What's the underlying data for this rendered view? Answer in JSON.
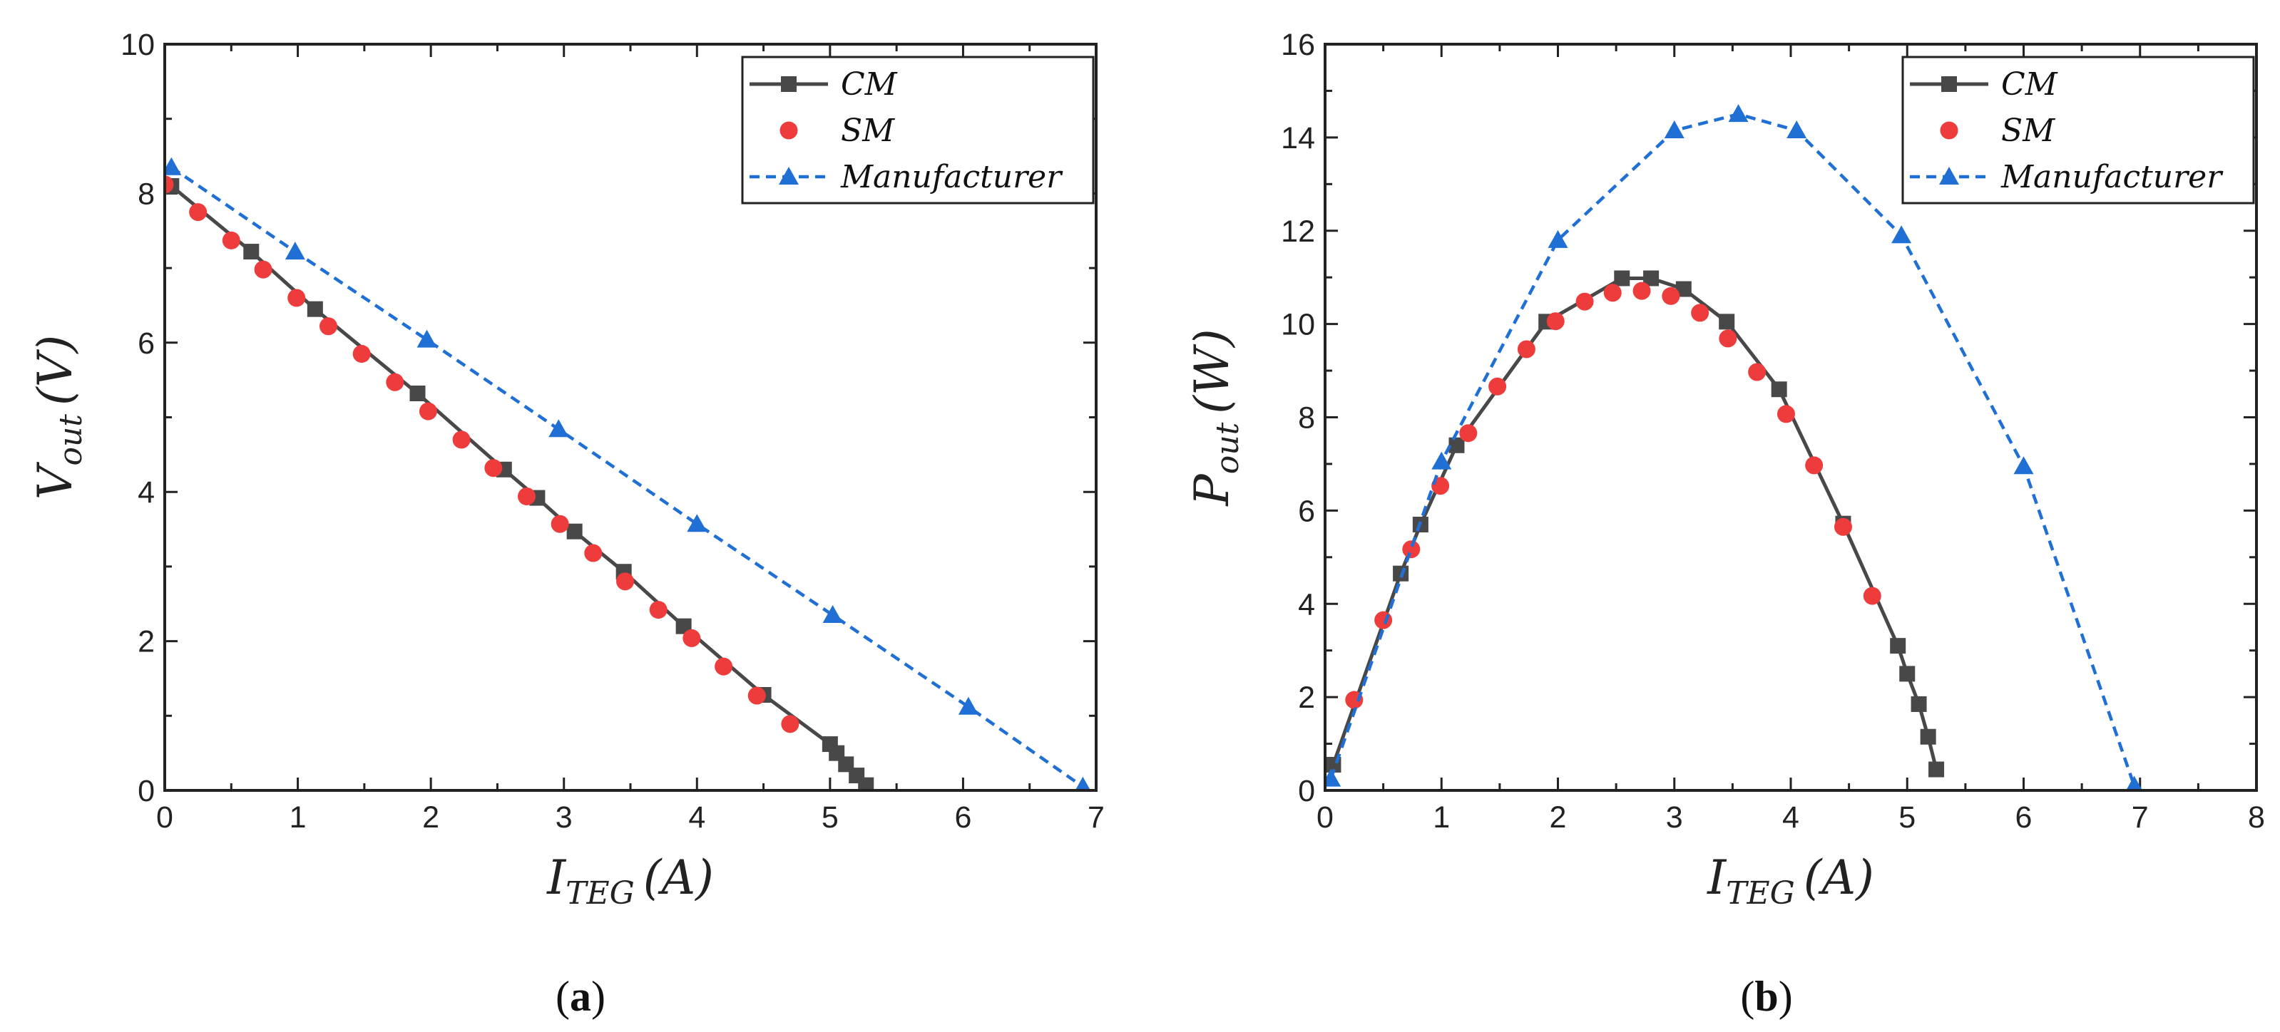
{
  "colors": {
    "cm": "#484848",
    "sm": "#ee3c3c",
    "manufacturer": "#1f6fd4",
    "axis": "#222222"
  },
  "chart_data": [
    {
      "type": "line",
      "panel_label": {
        "open": "(",
        "letter": "a",
        "close": ")"
      },
      "xlabel": {
        "base": "I",
        "sub": "TEG",
        "unit": "(A)"
      },
      "ylabel": {
        "base": "V",
        "sub": "out",
        "unit": "(V)"
      },
      "xlim": [
        0,
        7
      ],
      "ylim": [
        0,
        10
      ],
      "xticks": [
        0,
        1,
        2,
        3,
        4,
        5,
        6,
        7
      ],
      "yticks": [
        0,
        2,
        4,
        6,
        8,
        10
      ],
      "xtick_labels": [
        "0",
        "1",
        "2",
        "3",
        "4",
        "5",
        "6",
        "7"
      ],
      "ytick_labels": [
        "0",
        "2",
        "4",
        "6",
        "8",
        "10"
      ],
      "legend": {
        "position": "top-right",
        "entries": [
          "CM",
          "SM",
          "Manufacturer"
        ]
      },
      "series": [
        {
          "name": "CM",
          "style": "solid-square",
          "x": [
            0.05,
            0.65,
            1.13,
            1.9,
            2.55,
            2.8,
            3.08,
            3.45,
            3.9,
            4.5,
            5.0,
            5.05,
            5.12,
            5.2,
            5.27
          ],
          "y": [
            8.1,
            7.22,
            6.45,
            5.32,
            4.3,
            3.92,
            3.47,
            2.93,
            2.2,
            1.28,
            0.62,
            0.5,
            0.35,
            0.2,
            0.07
          ]
        },
        {
          "name": "SM",
          "style": "markers-circle",
          "x": [
            0.0,
            0.25,
            0.5,
            0.74,
            0.99,
            1.23,
            1.48,
            1.73,
            1.98,
            2.23,
            2.47,
            2.72,
            2.97,
            3.22,
            3.46,
            3.71,
            3.96,
            4.2,
            4.45,
            4.7
          ],
          "y": [
            8.12,
            7.75,
            7.37,
            6.98,
            6.6,
            6.22,
            5.85,
            5.47,
            5.08,
            4.7,
            4.32,
            3.94,
            3.57,
            3.18,
            2.8,
            2.42,
            2.04,
            1.66,
            1.27,
            0.89
          ]
        },
        {
          "name": "Manufacturer",
          "style": "dashed-triangle",
          "x": [
            0.05,
            0.98,
            1.97,
            2.96,
            4.0,
            5.02,
            6.04,
            6.9
          ],
          "y": [
            8.35,
            7.22,
            6.04,
            4.84,
            3.57,
            2.35,
            1.12,
            0.05
          ]
        }
      ]
    },
    {
      "type": "line",
      "panel_label": {
        "open": "(",
        "letter": "b",
        "close": ")"
      },
      "xlabel": {
        "base": "I",
        "sub": "TEG",
        "unit": "(A)"
      },
      "ylabel": {
        "base": "P",
        "sub": "out",
        "unit": "(W)"
      },
      "xlim": [
        0,
        8
      ],
      "ylim": [
        0,
        16
      ],
      "xticks": [
        0,
        1,
        2,
        3,
        4,
        5,
        6,
        7,
        8
      ],
      "yticks": [
        0,
        2,
        4,
        6,
        8,
        10,
        12,
        14,
        16
      ],
      "xtick_labels": [
        "0",
        "1",
        "2",
        "3",
        "4",
        "5",
        "6",
        "7",
        "8"
      ],
      "ytick_labels": [
        "0",
        "2",
        "4",
        "6",
        "8",
        "10",
        "12",
        "14",
        "16"
      ],
      "legend": {
        "position": "top-right",
        "entries": [
          "CM",
          "SM",
          "Manufacturer"
        ]
      },
      "series": [
        {
          "name": "CM",
          "style": "solid-square",
          "x": [
            0.07,
            0.65,
            0.82,
            1.13,
            1.9,
            2.55,
            2.8,
            3.08,
            3.45,
            3.9,
            4.45,
            4.92,
            5.0,
            5.1,
            5.18,
            5.25
          ],
          "y": [
            0.55,
            4.65,
            5.7,
            7.4,
            10.05,
            10.98,
            10.98,
            10.75,
            10.05,
            8.6,
            5.72,
            3.1,
            2.5,
            1.85,
            1.15,
            0.45
          ]
        },
        {
          "name": "SM",
          "style": "markers-circle",
          "x": [
            0.25,
            0.5,
            0.74,
            0.99,
            1.23,
            1.48,
            1.73,
            1.98,
            2.23,
            2.47,
            2.72,
            2.97,
            3.22,
            3.46,
            3.71,
            3.96,
            4.2,
            4.45,
            4.7
          ],
          "y": [
            1.94,
            3.65,
            5.17,
            6.53,
            7.66,
            8.66,
            9.46,
            10.06,
            10.48,
            10.67,
            10.71,
            10.6,
            10.24,
            9.69,
            8.97,
            8.07,
            6.97,
            5.65,
            4.17
          ]
        },
        {
          "name": "Manufacturer",
          "style": "dashed-triangle",
          "x": [
            0.05,
            1.0,
            2.0,
            3.0,
            3.55,
            4.05,
            4.95,
            6.0,
            6.95
          ],
          "y": [
            0.25,
            7.05,
            11.8,
            14.15,
            14.5,
            14.15,
            11.9,
            6.95,
            0.1
          ]
        }
      ]
    }
  ]
}
